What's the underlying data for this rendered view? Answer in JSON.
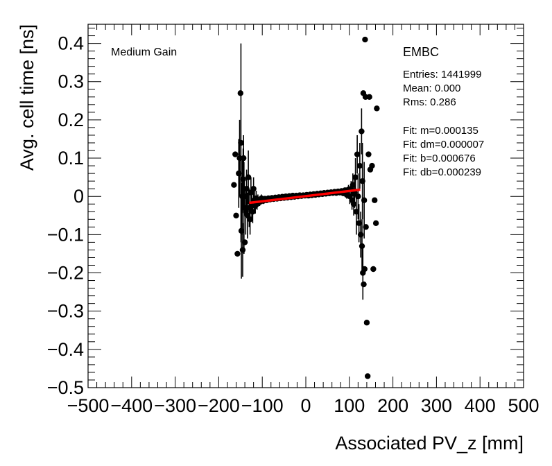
{
  "chart_data": {
    "type": "scatter",
    "xlabel": "Associated PV_z [mm]",
    "ylabel": "Avg. cell time [ns]",
    "xlim": [
      -500,
      500
    ],
    "ylim": [
      -0.5,
      0.45
    ],
    "x_ticks": [
      -500,
      -400,
      -300,
      -200,
      -100,
      0,
      100,
      200,
      300,
      400,
      500
    ],
    "x_tick_labels": [
      "−500",
      "−400",
      "−300",
      "−200",
      "−100",
      "0",
      "100",
      "200",
      "300",
      "400",
      "500"
    ],
    "y_ticks": [
      0.4,
      0.3,
      0.2,
      0.1,
      0,
      -0.1,
      -0.2,
      -0.3,
      -0.4,
      -0.5
    ],
    "y_tick_labels": [
      "0.4",
      "0.3",
      "0.2",
      "0.1",
      "0",
      "−0.1",
      "−0.2",
      "−0.3",
      "−0.4",
      "−0.5"
    ],
    "grid": false,
    "annotations": {
      "gain": "Medium Gain",
      "region": "EMBC",
      "stats": [
        "Entries: 1441999",
        "Mean: 0.000",
        "Rms: 0.286"
      ],
      "fit": [
        "Fit: m=0.000135",
        "Fit: dm=0.000007",
        "Fit: b=0.000676",
        "Fit: db=0.000239"
      ]
    },
    "fit_line": {
      "m": 0.000135,
      "b": 0.000676,
      "x_range": [
        -130,
        125
      ],
      "color": "#ff0000"
    },
    "points": [
      {
        "x": -165,
        "y": 0.03,
        "err": 0.0
      },
      {
        "x": -162,
        "y": 0.11,
        "err": 0.0
      },
      {
        "x": -160,
        "y": -0.05,
        "err": 0.0
      },
      {
        "x": -157,
        "y": -0.15,
        "err": 0.0
      },
      {
        "x": -154,
        "y": 0.06,
        "err": 0.09
      },
      {
        "x": -152,
        "y": 0.1,
        "err": 0.1
      },
      {
        "x": -150,
        "y": 0.27,
        "err": 0.0
      },
      {
        "x": -149,
        "y": 0.14,
        "err": 0.26
      },
      {
        "x": -148,
        "y": -0.09,
        "err": 0.125
      },
      {
        "x": -146,
        "y": 0.0,
        "err": 0.1
      },
      {
        "x": -145,
        "y": -0.14,
        "err": 0.07
      },
      {
        "x": -144,
        "y": 0.045,
        "err": 0.08
      },
      {
        "x": -143,
        "y": 0.1,
        "err": 0.06
      },
      {
        "x": -142,
        "y": -0.03,
        "err": 0.12
      },
      {
        "x": -141,
        "y": 0.0,
        "err": 0.05
      },
      {
        "x": -140,
        "y": -0.12,
        "err": 0.0
      },
      {
        "x": -138,
        "y": -0.04,
        "err": 0.06
      },
      {
        "x": -136,
        "y": 0.02,
        "err": 0.05
      },
      {
        "x": -134,
        "y": -0.05,
        "err": 0.06
      },
      {
        "x": -132,
        "y": 0.05,
        "err": 0.07
      },
      {
        "x": -130,
        "y": -0.03,
        "err": 0.05
      },
      {
        "x": -128,
        "y": -0.06,
        "err": 0.04
      },
      {
        "x": -126,
        "y": 0.01,
        "err": 0.04
      },
      {
        "x": -124,
        "y": -0.025,
        "err": 0.03
      },
      {
        "x": -122,
        "y": -0.04,
        "err": 0.03
      },
      {
        "x": -120,
        "y": 0.02,
        "err": 0.03
      },
      {
        "x": -118,
        "y": -0.01,
        "err": 0.025
      },
      {
        "x": -116,
        "y": -0.025,
        "err": 0.02
      },
      {
        "x": -114,
        "y": -0.005,
        "err": 0.02
      },
      {
        "x": -112,
        "y": -0.02,
        "err": 0.015
      },
      {
        "x": -110,
        "y": -0.01,
        "err": 0.015
      },
      {
        "x": -106,
        "y": -0.015,
        "err": 0.01
      },
      {
        "x": -102,
        "y": -0.005,
        "err": 0.01
      },
      {
        "x": -98,
        "y": -0.012,
        "err": 0.008
      },
      {
        "x": -94,
        "y": -0.006,
        "err": 0.006
      },
      {
        "x": -90,
        "y": -0.01,
        "err": 0.005
      },
      {
        "x": -86,
        "y": -0.005,
        "err": 0.004
      },
      {
        "x": -82,
        "y": -0.008,
        "err": 0.004
      },
      {
        "x": -78,
        "y": -0.004,
        "err": 0.003
      },
      {
        "x": -74,
        "y": -0.007,
        "err": 0.003
      },
      {
        "x": -70,
        "y": -0.003,
        "err": 0.003
      },
      {
        "x": -66,
        "y": -0.006,
        "err": 0.002
      },
      {
        "x": -62,
        "y": -0.002,
        "err": 0.002
      },
      {
        "x": -58,
        "y": -0.005,
        "err": 0.002
      },
      {
        "x": -54,
        "y": -0.001,
        "err": 0.002
      },
      {
        "x": -50,
        "y": -0.004,
        "err": 0.002
      },
      {
        "x": -46,
        "y": 0.0,
        "err": 0.002
      },
      {
        "x": -42,
        "y": -0.003,
        "err": 0.002
      },
      {
        "x": -38,
        "y": 0.001,
        "err": 0.002
      },
      {
        "x": -34,
        "y": -0.002,
        "err": 0.002
      },
      {
        "x": -30,
        "y": 0.002,
        "err": 0.002
      },
      {
        "x": -26,
        "y": -0.001,
        "err": 0.002
      },
      {
        "x": -22,
        "y": 0.002,
        "err": 0.002
      },
      {
        "x": -18,
        "y": 0.0,
        "err": 0.002
      },
      {
        "x": -14,
        "y": 0.003,
        "err": 0.002
      },
      {
        "x": -10,
        "y": 0.001,
        "err": 0.002
      },
      {
        "x": -6,
        "y": 0.003,
        "err": 0.002
      },
      {
        "x": -2,
        "y": 0.002,
        "err": 0.002
      },
      {
        "x": 2,
        "y": 0.004,
        "err": 0.002
      },
      {
        "x": 6,
        "y": 0.002,
        "err": 0.002
      },
      {
        "x": 10,
        "y": 0.005,
        "err": 0.002
      },
      {
        "x": 14,
        "y": 0.003,
        "err": 0.002
      },
      {
        "x": 18,
        "y": 0.006,
        "err": 0.002
      },
      {
        "x": 22,
        "y": 0.004,
        "err": 0.002
      },
      {
        "x": 26,
        "y": 0.007,
        "err": 0.002
      },
      {
        "x": 30,
        "y": 0.005,
        "err": 0.002
      },
      {
        "x": 34,
        "y": 0.008,
        "err": 0.002
      },
      {
        "x": 38,
        "y": 0.006,
        "err": 0.002
      },
      {
        "x": 42,
        "y": 0.009,
        "err": 0.002
      },
      {
        "x": 46,
        "y": 0.007,
        "err": 0.002
      },
      {
        "x": 50,
        "y": 0.01,
        "err": 0.002
      },
      {
        "x": 54,
        "y": 0.008,
        "err": 0.002
      },
      {
        "x": 58,
        "y": 0.011,
        "err": 0.003
      },
      {
        "x": 62,
        "y": 0.009,
        "err": 0.003
      },
      {
        "x": 66,
        "y": 0.012,
        "err": 0.003
      },
      {
        "x": 70,
        "y": 0.009,
        "err": 0.003
      },
      {
        "x": 74,
        "y": 0.013,
        "err": 0.004
      },
      {
        "x": 78,
        "y": 0.01,
        "err": 0.004
      },
      {
        "x": 82,
        "y": 0.014,
        "err": 0.005
      },
      {
        "x": 86,
        "y": 0.008,
        "err": 0.006
      },
      {
        "x": 90,
        "y": 0.016,
        "err": 0.007
      },
      {
        "x": 94,
        "y": 0.004,
        "err": 0.01
      },
      {
        "x": 98,
        "y": 0.018,
        "err": 0.012
      },
      {
        "x": 101,
        "y": 0.0,
        "err": 0.02
      },
      {
        "x": 104,
        "y": 0.02,
        "err": 0.02
      },
      {
        "x": 106,
        "y": -0.01,
        "err": 0.025
      },
      {
        "x": 108,
        "y": 0.03,
        "err": 0.03
      },
      {
        "x": 110,
        "y": -0.02,
        "err": 0.03
      },
      {
        "x": 112,
        "y": 0.01,
        "err": 0.04
      },
      {
        "x": 114,
        "y": 0.05,
        "err": 0.05
      },
      {
        "x": 116,
        "y": -0.04,
        "err": 0.06
      },
      {
        "x": 118,
        "y": 0.11,
        "err": 0.05
      },
      {
        "x": 120,
        "y": 0.0,
        "err": 0.06
      },
      {
        "x": 122,
        "y": -0.07,
        "err": 0.05
      },
      {
        "x": 124,
        "y": 0.08,
        "err": 0.06
      },
      {
        "x": 126,
        "y": -0.1,
        "err": 0.06
      },
      {
        "x": 128,
        "y": 0.17,
        "err": 0.06
      },
      {
        "x": 129,
        "y": -0.13,
        "err": 0.07
      },
      {
        "x": 130,
        "y": 0.04,
        "err": 0.1
      },
      {
        "x": 131,
        "y": -0.2,
        "err": 0.07
      },
      {
        "x": 132,
        "y": 0.27,
        "err": 0.0
      },
      {
        "x": 133,
        "y": -0.23,
        "err": 0.0
      },
      {
        "x": 134,
        "y": -0.01,
        "err": 0.1
      },
      {
        "x": 135,
        "y": -0.19,
        "err": 0.0
      },
      {
        "x": 136,
        "y": 0.41,
        "err": 0.0
      },
      {
        "x": 137,
        "y": 0.26,
        "err": 0.0
      },
      {
        "x": 138,
        "y": -0.08,
        "err": 0.0
      },
      {
        "x": 140,
        "y": -0.33,
        "err": 0.0
      },
      {
        "x": 142,
        "y": -0.47,
        "err": 0.0
      },
      {
        "x": 144,
        "y": 0.11,
        "err": 0.0
      },
      {
        "x": 146,
        "y": 0.26,
        "err": 0.0
      },
      {
        "x": 148,
        "y": 0.07,
        "err": 0.0
      },
      {
        "x": 152,
        "y": 0.08,
        "err": 0.0
      },
      {
        "x": 155,
        "y": -0.19,
        "err": 0.0
      },
      {
        "x": 158,
        "y": -0.01,
        "err": 0.0
      },
      {
        "x": 161,
        "y": -0.07,
        "err": 0.0
      },
      {
        "x": 163,
        "y": 0.23,
        "err": 0.0
      }
    ]
  }
}
